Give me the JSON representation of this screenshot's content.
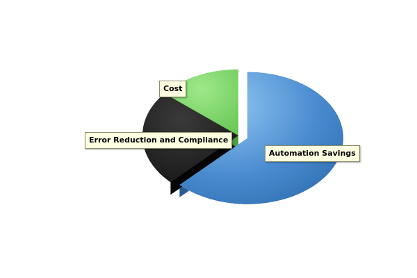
{
  "chart_data": {
    "type": "pie",
    "title": "",
    "categories": [
      "Automation Savings",
      "Error Reduction and Compliance",
      "Cost"
    ],
    "values": [
      62.5,
      23.5,
      14.0
    ],
    "unit": "percent",
    "exploded": [
      "Automation Savings"
    ],
    "colors": [
      "#4a8bd0",
      "#1e1e1e",
      "#7edb6a"
    ],
    "legend": "none",
    "style": "3d"
  }
}
